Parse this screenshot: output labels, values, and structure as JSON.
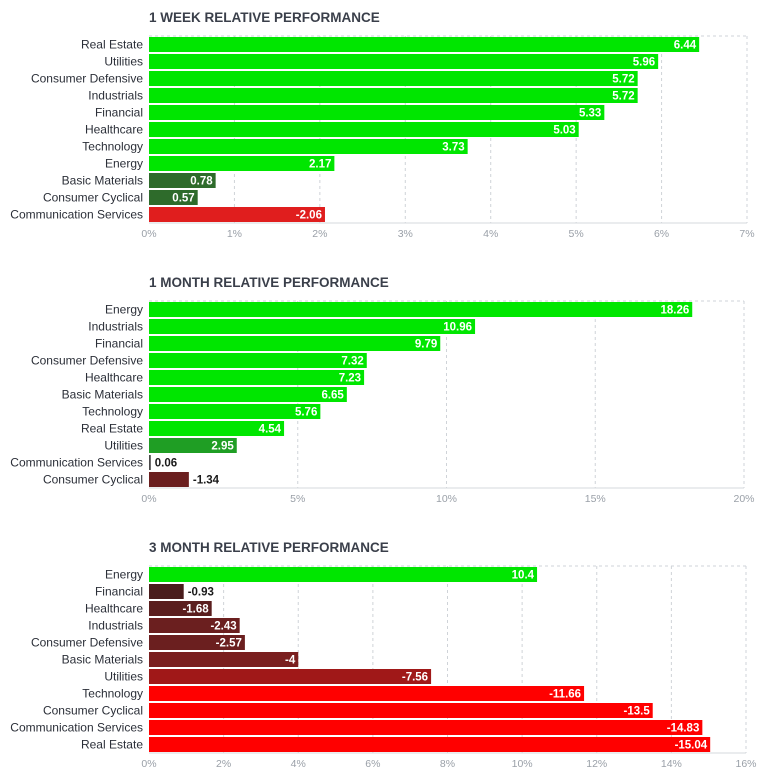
{
  "chart_data": [
    {
      "type": "bar",
      "orientation": "horizontal",
      "title": "1 WEEK RELATIVE PERFORMANCE",
      "categories": [
        "Real Estate",
        "Utilities",
        "Consumer Defensive",
        "Industrials",
        "Financial",
        "Healthcare",
        "Technology",
        "Energy",
        "Basic Materials",
        "Consumer Cyclical",
        "Communication Services"
      ],
      "values": [
        6.44,
        5.96,
        5.72,
        5.72,
        5.33,
        5.03,
        3.73,
        2.17,
        0.78,
        0.57,
        -2.06
      ],
      "value_labels": [
        "6.44",
        "5.96",
        "5.72",
        "5.72",
        "5.33",
        "5.03",
        "3.73",
        "2.17",
        "0.78",
        "0.57",
        "-2.06"
      ],
      "ticks": [
        "0%",
        "1%",
        "2%",
        "3%",
        "4%",
        "5%",
        "6%",
        "7%"
      ],
      "xlim": [
        0,
        7
      ],
      "grid": true,
      "bar_colors": [
        "#00e600",
        "#00e600",
        "#00e600",
        "#00e600",
        "#00e600",
        "#00e600",
        "#00e600",
        "#00e600",
        "#2e6b2b",
        "#2e6b2b",
        "#e01e1e"
      ]
    },
    {
      "type": "bar",
      "orientation": "horizontal",
      "title": "1 MONTH RELATIVE PERFORMANCE",
      "categories": [
        "Energy",
        "Industrials",
        "Financial",
        "Consumer Defensive",
        "Healthcare",
        "Basic Materials",
        "Technology",
        "Real Estate",
        "Utilities",
        "Communication Services",
        "Consumer Cyclical"
      ],
      "values": [
        18.26,
        10.96,
        9.79,
        7.32,
        7.23,
        6.65,
        5.76,
        4.54,
        2.95,
        0.06,
        -1.34
      ],
      "value_labels": [
        "18.26",
        "10.96",
        "9.79",
        "7.32",
        "7.23",
        "6.65",
        "5.76",
        "4.54",
        "2.95",
        "0.06",
        "-1.34"
      ],
      "ticks": [
        "0%",
        "5%",
        "10%",
        "15%",
        "20%"
      ],
      "xlim": [
        0,
        20
      ],
      "grid": true,
      "bar_colors": [
        "#00e600",
        "#00e600",
        "#00e600",
        "#00e600",
        "#00e600",
        "#00e600",
        "#00e600",
        "#00e600",
        "#1f9e24",
        "#4a4a4a",
        "#6b1f1f"
      ]
    },
    {
      "type": "bar",
      "orientation": "horizontal",
      "title": "3 MONTH RELATIVE PERFORMANCE",
      "categories": [
        "Energy",
        "Financial",
        "Healthcare",
        "Industrials",
        "Consumer Defensive",
        "Basic Materials",
        "Utilities",
        "Technology",
        "Consumer Cyclical",
        "Communication Services",
        "Real Estate"
      ],
      "values": [
        10.4,
        -0.93,
        -1.68,
        -2.43,
        -2.57,
        -4,
        -7.56,
        -11.66,
        -13.5,
        -14.83,
        -15.04
      ],
      "value_labels": [
        "10.4",
        "-0.93",
        "-1.68",
        "-2.43",
        "-2.57",
        "-4",
        "-7.56",
        "-11.66",
        "-13.5",
        "-14.83",
        "-15.04"
      ],
      "ticks": [
        "0%",
        "2%",
        "4%",
        "6%",
        "8%",
        "10%",
        "12%",
        "14%",
        "16%"
      ],
      "xlim": [
        0,
        16
      ],
      "grid": true,
      "bar_colors": [
        "#00e600",
        "#4a1c1c",
        "#5a1e1e",
        "#6b1f1f",
        "#6b1f1f",
        "#7a1f1f",
        "#a01818",
        "#ff0000",
        "#ff0000",
        "#ff0000",
        "#ff0000"
      ]
    }
  ]
}
